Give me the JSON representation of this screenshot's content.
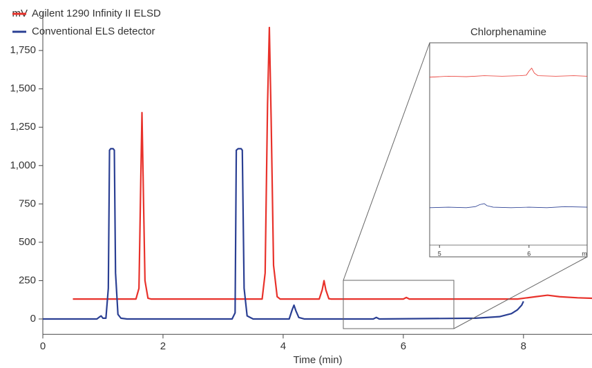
{
  "chart_data": [
    {
      "type": "line",
      "ylabel": "mV",
      "xlabel": "Time (min)",
      "xlim": [
        0,
        9.14
      ],
      "ylim": [
        -100,
        2000
      ],
      "xticks": [
        0,
        2,
        4,
        6,
        8
      ],
      "yticks": [
        0,
        250,
        500,
        750,
        {
          "value": 1000,
          "label": "1,000"
        },
        {
          "value": 1250,
          "label": "1,250"
        },
        {
          "value": 1500,
          "label": "1,500"
        },
        {
          "value": 1750,
          "label": "1,750"
        }
      ],
      "legend": "top-left",
      "series": [
        {
          "name": "Agilent 1290 Infinity II ELSD",
          "color": "#e8312a",
          "x": [
            0.5,
            1.55,
            1.6,
            1.63,
            1.65,
            1.67,
            1.7,
            1.75,
            1.8,
            3.65,
            3.7,
            3.74,
            3.77,
            3.8,
            3.84,
            3.9,
            3.95,
            4.6,
            4.65,
            4.68,
            4.71,
            4.76,
            4.8,
            6.0,
            6.05,
            6.1,
            7.9,
            8.2,
            8.4,
            8.6,
            8.9,
            9.14
          ],
          "values": [
            130,
            130,
            200,
            900,
            1345,
            900,
            250,
            135,
            130,
            130,
            300,
            1400,
            1900,
            1300,
            350,
            145,
            130,
            130,
            190,
            250,
            190,
            132,
            130,
            130,
            140,
            130,
            130,
            145,
            155,
            145,
            138,
            135
          ]
        },
        {
          "name": "Conventional ELS detector",
          "color": "#2a3f93",
          "x": [
            0,
            0.9,
            0.95,
            0.97,
            1.0,
            1.05,
            1.09,
            1.11,
            1.13,
            1.17,
            1.19,
            1.21,
            1.25,
            1.3,
            1.4,
            3.15,
            3.2,
            3.22,
            3.25,
            3.3,
            3.32,
            3.35,
            3.4,
            3.5,
            4.1,
            4.15,
            4.18,
            4.21,
            4.26,
            4.35,
            5.5,
            5.55,
            5.6,
            7.2,
            7.6,
            7.8,
            7.9,
            7.97,
            8.0
          ],
          "values": [
            0,
            0,
            15,
            20,
            5,
            5,
            200,
            1100,
            1110,
            1110,
            1100,
            300,
            30,
            5,
            0,
            0,
            40,
            1100,
            1110,
            1110,
            1100,
            200,
            20,
            0,
            0,
            60,
            90,
            55,
            10,
            0,
            0,
            10,
            0,
            5,
            15,
            35,
            60,
            90,
            115
          ]
        }
      ]
    },
    {
      "type": "line",
      "title": "Chlorphenamine",
      "xlabel": "m",
      "xlim": [
        4.89,
        6.65
      ],
      "ylim": [
        -37,
        163
      ],
      "xticks": [
        5,
        6
      ],
      "series": [
        {
          "color": "#e8312a",
          "x": [
            4.89,
            5.1,
            5.3,
            5.5,
            5.7,
            5.9,
            5.97,
            6.0,
            6.03,
            6.06,
            6.1,
            6.3,
            6.5,
            6.65
          ],
          "values": [
            129,
            130,
            129.5,
            130.5,
            130,
            130.5,
            131,
            135,
            138,
            133,
            130.5,
            130,
            130.5,
            130
          ]
        },
        {
          "color": "#2a3f93",
          "x": [
            4.89,
            5.1,
            5.3,
            5.4,
            5.45,
            5.5,
            5.53,
            5.6,
            5.8,
            6.0,
            6.2,
            6.4,
            6.65
          ],
          "values": [
            0,
            0.5,
            0,
            1,
            3,
            4,
            2,
            0.5,
            0,
            0.5,
            0,
            1,
            0.5
          ]
        }
      ]
    }
  ]
}
